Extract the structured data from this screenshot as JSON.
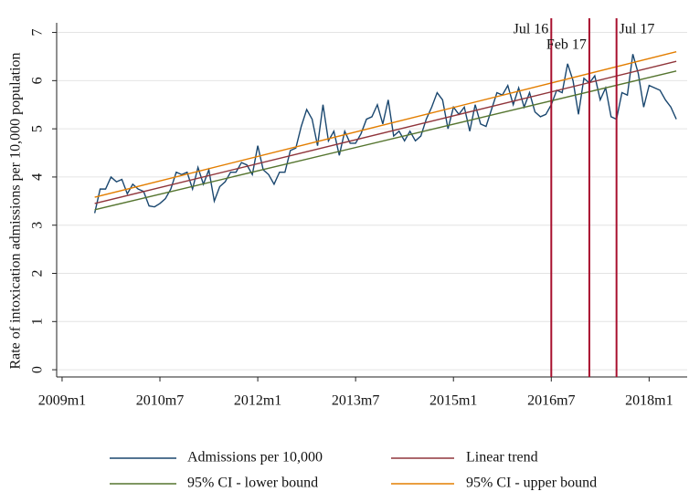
{
  "chart_data": {
    "type": "line",
    "y_label": "Rate of intoxication admissions per 10,000 population",
    "xlim": [
      587,
      703
    ],
    "ylim": [
      -0.15,
      7.2
    ],
    "xticks": [
      {
        "value": 588,
        "label": "2009m1"
      },
      {
        "value": 606,
        "label": "2010m7"
      },
      {
        "value": 624,
        "label": "2012m1"
      },
      {
        "value": 642,
        "label": "2013m7"
      },
      {
        "value": 660,
        "label": "2015m1"
      },
      {
        "value": 678,
        "label": "2016m7"
      },
      {
        "value": 696,
        "label": "2018m1"
      }
    ],
    "yticks": [
      0,
      1,
      2,
      3,
      4,
      5,
      6,
      7
    ],
    "grid": true,
    "legend": "bottom",
    "x": [
      594,
      595,
      596,
      597,
      598,
      599,
      600,
      601,
      602,
      603,
      604,
      605,
      606,
      607,
      608,
      609,
      610,
      611,
      612,
      613,
      614,
      615,
      616,
      617,
      618,
      619,
      620,
      621,
      622,
      623,
      624,
      625,
      626,
      627,
      628,
      629,
      630,
      631,
      632,
      633,
      634,
      635,
      636,
      637,
      638,
      639,
      640,
      641,
      642,
      643,
      644,
      645,
      646,
      647,
      648,
      649,
      650,
      651,
      652,
      653,
      654,
      655,
      656,
      657,
      658,
      659,
      660,
      661,
      662,
      663,
      664,
      665,
      666,
      667,
      668,
      669,
      670,
      671,
      672,
      673,
      674,
      675,
      676,
      677,
      678,
      679,
      680,
      681,
      682,
      683,
      684,
      685,
      686,
      687,
      688,
      689,
      690,
      691,
      692,
      693,
      694,
      695,
      696,
      697,
      698,
      699,
      700,
      701
    ],
    "series": [
      {
        "name": "Admissions per 10,000",
        "color": "#1a476f",
        "values": [
          3.25,
          3.75,
          3.75,
          4.0,
          3.9,
          3.95,
          3.65,
          3.85,
          3.75,
          3.7,
          3.4,
          3.38,
          3.45,
          3.55,
          3.75,
          4.1,
          4.05,
          4.1,
          3.75,
          4.2,
          3.85,
          4.15,
          3.5,
          3.8,
          3.9,
          4.1,
          4.1,
          4.3,
          4.25,
          4.05,
          4.65,
          4.15,
          4.05,
          3.85,
          4.1,
          4.1,
          4.55,
          4.6,
          5.05,
          5.4,
          5.2,
          4.65,
          5.5,
          4.75,
          4.95,
          4.45,
          4.95,
          4.7,
          4.7,
          4.9,
          5.2,
          5.25,
          5.5,
          5.1,
          5.6,
          4.85,
          4.95,
          4.75,
          4.95,
          4.75,
          4.85,
          5.2,
          5.45,
          5.75,
          5.6,
          5.0,
          5.45,
          5.3,
          5.45,
          4.95,
          5.5,
          5.1,
          5.05,
          5.4,
          5.75,
          5.7,
          5.9,
          5.5,
          5.85,
          5.45,
          5.75,
          5.35,
          5.25,
          5.3,
          5.5,
          5.8,
          5.75,
          6.35,
          6.0,
          5.3,
          6.05,
          5.95,
          6.1,
          5.6,
          5.85,
          5.25,
          5.2,
          5.75,
          5.7,
          6.55,
          6.15,
          5.45,
          5.9,
          5.85,
          5.8,
          5.6,
          5.45,
          5.2
        ]
      },
      {
        "name": "Linear trend",
        "color": "#90353b",
        "x": [
          594,
          701
        ],
        "values": [
          3.45,
          6.4
        ]
      },
      {
        "name": "95% CI - lower bound",
        "color": "#55752f",
        "x": [
          594,
          701
        ],
        "values": [
          3.32,
          6.2
        ]
      },
      {
        "name": "95% CI - upper bound",
        "color": "#e37e00",
        "x": [
          594,
          701
        ],
        "values": [
          3.58,
          6.6
        ]
      }
    ],
    "annotations": [
      {
        "label": "Jul 16",
        "x": 678,
        "color": "#a8102e"
      },
      {
        "label": "Feb 17",
        "x": 685,
        "color": "#a8102e"
      },
      {
        "label": "Jul 17",
        "x": 690,
        "color": "#a8102e"
      }
    ]
  }
}
